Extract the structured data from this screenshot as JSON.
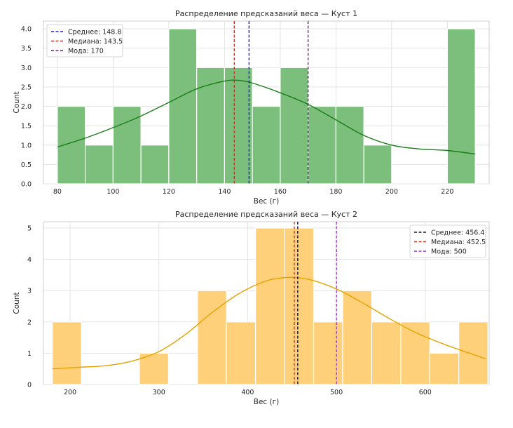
{
  "chart_data": [
    {
      "type": "bar",
      "title": "Распределение предсказаний веса — Куст 1",
      "xlabel": "Вес (г)",
      "ylabel": "Count",
      "xlim": [
        75,
        235
      ],
      "ylim": [
        0,
        4.2
      ],
      "xticks": [
        80,
        100,
        120,
        140,
        160,
        180,
        200,
        220
      ],
      "yticks": [
        0,
        0.5,
        1.0,
        1.5,
        2.0,
        2.5,
        3.0,
        3.5,
        4.0
      ],
      "ytick_labels": [
        "0.0",
        "0.5",
        "1.0",
        "1.5",
        "2.0",
        "2.5",
        "3.0",
        "3.5",
        "4.0"
      ],
      "bin_width": 10,
      "bins": [
        {
          "x0": 80,
          "count": 2
        },
        {
          "x0": 90,
          "count": 1
        },
        {
          "x0": 100,
          "count": 2
        },
        {
          "x0": 110,
          "count": 1
        },
        {
          "x0": 120,
          "count": 4
        },
        {
          "x0": 130,
          "count": 3
        },
        {
          "x0": 140,
          "count": 3
        },
        {
          "x0": 150,
          "count": 2
        },
        {
          "x0": 160,
          "count": 3
        },
        {
          "x0": 170,
          "count": 2
        },
        {
          "x0": 180,
          "count": 2
        },
        {
          "x0": 190,
          "count": 1
        },
        {
          "x0": 200,
          "count": 0
        },
        {
          "x0": 210,
          "count": 0
        },
        {
          "x0": 220,
          "count": 4
        }
      ],
      "bar_color": "#7cbf7c",
      "kde_color": "#1a7d1a",
      "kde": [
        [
          80,
          0.95
        ],
        [
          90,
          1.18
        ],
        [
          100,
          1.45
        ],
        [
          110,
          1.75
        ],
        [
          120,
          2.1
        ],
        [
          130,
          2.45
        ],
        [
          140,
          2.65
        ],
        [
          145,
          2.67
        ],
        [
          150,
          2.6
        ],
        [
          160,
          2.35
        ],
        [
          170,
          2.05
        ],
        [
          180,
          1.65
        ],
        [
          190,
          1.25
        ],
        [
          200,
          1.0
        ],
        [
          210,
          0.9
        ],
        [
          220,
          0.86
        ],
        [
          230,
          0.77
        ]
      ],
      "lines": [
        {
          "name": "Среднее: 148.8",
          "value": 148.8,
          "color": "#1f1fd6"
        },
        {
          "name": "Медиана: 143.5",
          "value": 143.5,
          "color": "#c0392b"
        },
        {
          "name": "Мода: 170",
          "value": 170,
          "color": "#7a1a7a"
        }
      ],
      "legend": "top-left",
      "grid": true
    },
    {
      "type": "bar",
      "title": "Распределение предсказаний веса — Куст 2",
      "xlabel": "Вес (г)",
      "ylabel": "Count",
      "xlim": [
        170,
        672
      ],
      "ylim": [
        0,
        5.2
      ],
      "xticks": [
        200,
        300,
        400,
        500,
        600
      ],
      "yticks": [
        0,
        1,
        2,
        3,
        4,
        5
      ],
      "ytick_labels": [
        "0",
        "1",
        "2",
        "3",
        "4",
        "5"
      ],
      "bin_width": 32.7,
      "bin_start": 180,
      "bins": [
        {
          "count": 2
        },
        {
          "count": 0
        },
        {
          "count": 0
        },
        {
          "count": 1
        },
        {
          "count": 0
        },
        {
          "count": 3
        },
        {
          "count": 2
        },
        {
          "count": 5
        },
        {
          "count": 5
        },
        {
          "count": 2
        },
        {
          "count": 3
        },
        {
          "count": 2
        },
        {
          "count": 2
        },
        {
          "count": 1
        },
        {
          "count": 2
        }
      ],
      "bar_color": "#ffd07a",
      "kde_color": "#e6a200",
      "kde": [
        [
          180,
          0.5
        ],
        [
          210,
          0.55
        ],
        [
          240,
          0.6
        ],
        [
          270,
          0.75
        ],
        [
          300,
          1.05
        ],
        [
          330,
          1.6
        ],
        [
          360,
          2.3
        ],
        [
          390,
          2.9
        ],
        [
          420,
          3.3
        ],
        [
          445,
          3.42
        ],
        [
          470,
          3.35
        ],
        [
          500,
          3.05
        ],
        [
          530,
          2.6
        ],
        [
          560,
          2.1
        ],
        [
          590,
          1.65
        ],
        [
          620,
          1.3
        ],
        [
          668,
          0.82
        ]
      ],
      "lines": [
        {
          "name": "Среднее: 456.4",
          "value": 456.4,
          "color": "#14143d"
        },
        {
          "name": "Медиана: 452.5",
          "value": 452.5,
          "color": "#c0392b"
        },
        {
          "name": "Мода: 500",
          "value": 500,
          "color": "#9b30d9"
        }
      ],
      "legend": "top-right",
      "grid": true
    }
  ]
}
